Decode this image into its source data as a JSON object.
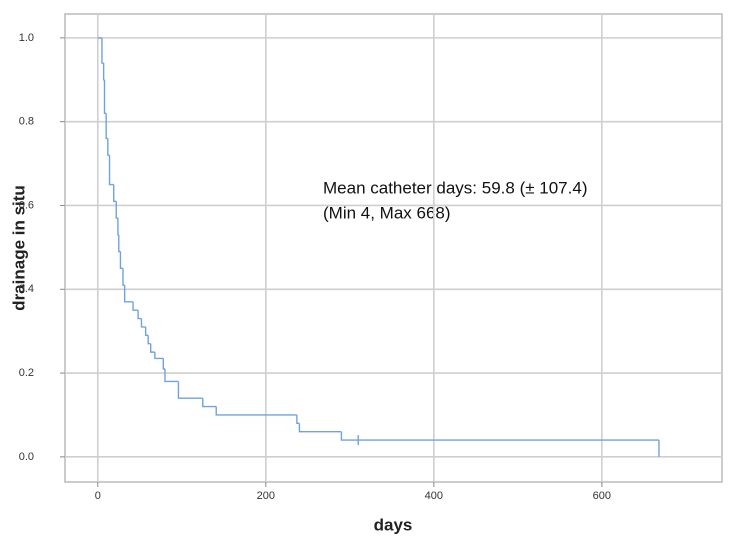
{
  "chart_data": {
    "type": "step",
    "x_label": "days",
    "y_label": "drainage in situ",
    "annotation": [
      "Mean catheter days: 59.8 (± 107.4)",
      "(Min 4, Max 668)"
    ],
    "color": "#6fa3df",
    "x": [
      0,
      5,
      7,
      8,
      10,
      12,
      14,
      19,
      22,
      24,
      25,
      27,
      30,
      32,
      42,
      48,
      52,
      57,
      60,
      63,
      68,
      78,
      80,
      96,
      125,
      141,
      237,
      240,
      290,
      668
    ],
    "values": [
      1.0,
      0.94,
      0.9,
      0.82,
      0.76,
      0.72,
      0.65,
      0.61,
      0.57,
      0.53,
      0.49,
      0.45,
      0.41,
      0.37,
      0.35,
      0.33,
      0.31,
      0.29,
      0.27,
      0.25,
      0.235,
      0.21,
      0.18,
      0.14,
      0.12,
      0.1,
      0.08,
      0.06,
      0.04,
      0.0
    ],
    "censored_x": [
      310
    ],
    "censored_values": [
      0.04
    ],
    "xlim": [
      -39,
      743
    ],
    "ylim": [
      -0.06,
      1.057
    ],
    "xticks": [
      0,
      200,
      400,
      600
    ],
    "yticks": [
      {
        "value": 0,
        "label": "0.0"
      },
      0.2,
      0.4,
      0.6,
      0.8,
      {
        "value": 1,
        "label": "1.0"
      }
    ],
    "grid": true
  }
}
